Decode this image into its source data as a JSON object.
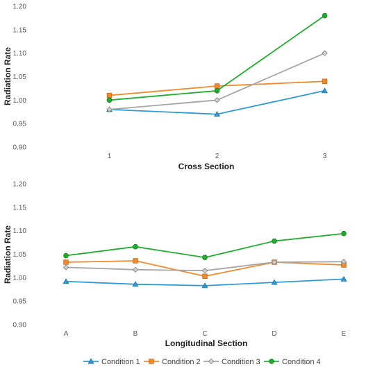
{
  "chart_data": [
    {
      "type": "line",
      "categories": [
        "1",
        "2",
        "3"
      ],
      "xlabel": "Cross Section",
      "ylabel": "Radiation Rate",
      "ylim": [
        0.9,
        1.2
      ],
      "yticks": [
        "0.90",
        "0.95",
        "1.00",
        "1.05",
        "1.10",
        "1.15",
        "1.20"
      ],
      "grid": false,
      "series": [
        {
          "name": "Condition 1",
          "values": [
            0.98,
            0.97,
            1.02
          ]
        },
        {
          "name": "Condition 2",
          "values": [
            1.01,
            1.03,
            1.04
          ]
        },
        {
          "name": "Condition 3",
          "values": [
            0.98,
            1.0,
            1.1
          ]
        },
        {
          "name": "Condition 4",
          "values": [
            1.0,
            1.02,
            1.18
          ]
        }
      ]
    },
    {
      "type": "line",
      "categories": [
        "A",
        "B",
        "C",
        "D",
        "E"
      ],
      "xlabel": "Longitudinal Section",
      "ylabel": "Radiation Rate",
      "ylim": [
        0.9,
        1.2
      ],
      "yticks": [
        "0.90",
        "0.95",
        "1.00",
        "1.05",
        "1.10",
        "1.15",
        "1.20"
      ],
      "grid": false,
      "series": [
        {
          "name": "Condition 1",
          "values": [
            0.992,
            0.986,
            0.983,
            0.99,
            0.997
          ]
        },
        {
          "name": "Condition 2",
          "values": [
            1.033,
            1.036,
            1.003,
            1.033,
            1.027
          ]
        },
        {
          "name": "Condition 3",
          "values": [
            1.022,
            1.017,
            1.015,
            1.033,
            1.034
          ]
        },
        {
          "name": "Condition 4",
          "values": [
            1.047,
            1.066,
            1.043,
            1.078,
            1.094
          ]
        }
      ]
    }
  ],
  "legend": {
    "placement": "bottom",
    "items": [
      {
        "label": "Condition 1",
        "marker": "triangle",
        "color": "#2e9bd6"
      },
      {
        "label": "Condition 2",
        "marker": "square",
        "color": "#f08a2c"
      },
      {
        "label": "Condition 3",
        "marker": "diamond",
        "color": "#a5a5a5"
      },
      {
        "label": "Condition 4",
        "marker": "circle",
        "color": "#1fae2c"
      }
    ]
  }
}
